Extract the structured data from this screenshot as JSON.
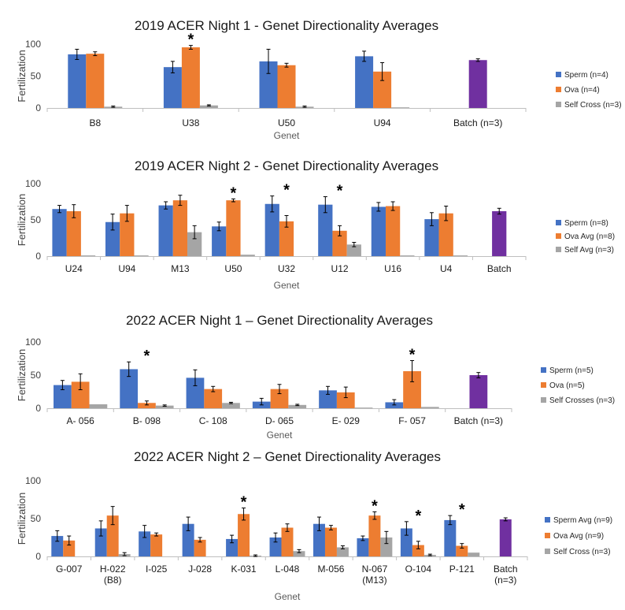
{
  "colors": {
    "sperm": "#4472C4",
    "ova": "#ED7D31",
    "self": "#A5A5A5",
    "batch": "#7030A0"
  },
  "chart_data": [
    {
      "type": "bar",
      "title": "2019 ACER Night 1 - Genet Directionality Averages",
      "xlabel": "Genet",
      "ylabel": "Fertilization",
      "ylim": [
        0,
        100
      ],
      "yticks": [
        "0",
        "50",
        "100"
      ],
      "grid": false,
      "legend_position": "right",
      "categories": [
        [
          "B8"
        ],
        [
          "U38"
        ],
        [
          "U50"
        ],
        [
          "U94"
        ],
        [
          "Batch (n=3)"
        ]
      ],
      "series": [
        {
          "name": "Sperm (n=4)",
          "color": "#4472C4",
          "values": [
            84,
            64,
            73,
            81,
            null
          ],
          "errors": [
            8,
            9,
            19,
            8,
            null
          ]
        },
        {
          "name": "Ova (n=4)",
          "color": "#ED7D31",
          "values": [
            85,
            95,
            67,
            57,
            null
          ],
          "errors": [
            3,
            3,
            3,
            14,
            null
          ]
        },
        {
          "name": "Self Cross (n=3)",
          "color": "#A5A5A5",
          "values": [
            2,
            4,
            2,
            1,
            null
          ],
          "errors": [
            1,
            1,
            1,
            0,
            null
          ]
        }
      ],
      "batch": {
        "value": 75,
        "error": 2,
        "color": "#7030A0"
      },
      "significant": [
        1
      ]
    },
    {
      "type": "bar",
      "title": "2019 ACER Night 2 - Genet Directionality Averages",
      "xlabel": "Genet",
      "ylabel": "Fertilization",
      "ylim": [
        0,
        100
      ],
      "yticks": [
        "0",
        "50",
        "100"
      ],
      "grid": false,
      "legend_position": "right",
      "categories": [
        [
          "U24"
        ],
        [
          "U94"
        ],
        [
          "M13"
        ],
        [
          "U50"
        ],
        [
          "U32"
        ],
        [
          "U12"
        ],
        [
          "U16"
        ],
        [
          "U4"
        ],
        [
          "Batch"
        ]
      ],
      "series": [
        {
          "name": "Sperm (n=8)",
          "color": "#4472C4",
          "values": [
            65,
            47,
            70,
            41,
            72,
            71,
            68,
            51,
            null
          ],
          "errors": [
            5,
            11,
            5,
            6,
            11,
            11,
            6,
            9,
            null
          ]
        },
        {
          "name": "Ova Avg (n=8)",
          "color": "#ED7D31",
          "values": [
            62,
            59,
            77,
            77,
            48,
            35,
            69,
            59,
            null
          ],
          "errors": [
            9,
            11,
            7,
            2,
            8,
            7,
            6,
            10,
            null
          ]
        },
        {
          "name": "Self Avg (n=3)",
          "color": "#A5A5A5",
          "values": [
            1,
            1,
            33,
            2,
            0,
            16,
            1,
            1,
            null
          ],
          "errors": [
            0,
            0,
            9,
            0,
            0,
            3,
            0,
            0,
            null
          ]
        }
      ],
      "batch": {
        "value": 62,
        "error": 4,
        "color": "#7030A0"
      },
      "significant": [
        3,
        4,
        5
      ]
    },
    {
      "type": "bar",
      "title": "2022 ACER Night 1 – Genet Directionality Averages",
      "xlabel": "Genet",
      "ylabel": "Fertilization",
      "ylim": [
        0,
        100
      ],
      "yticks": [
        "0",
        "50",
        "100"
      ],
      "grid": false,
      "legend_position": "right",
      "categories": [
        [
          "A- 056"
        ],
        [
          "B- 098"
        ],
        [
          "C- 108"
        ],
        [
          "D- 065"
        ],
        [
          "E- 029"
        ],
        [
          "F- 057"
        ],
        [
          "Batch (n=3)"
        ]
      ],
      "series": [
        {
          "name": "Sperm (n=5)",
          "color": "#4472C4",
          "values": [
            35,
            59,
            46,
            10,
            27,
            9,
            null
          ],
          "errors": [
            7,
            11,
            12,
            5,
            6,
            4,
            null
          ]
        },
        {
          "name": "Ova (n=5)",
          "color": "#ED7D31",
          "values": [
            40,
            8,
            29,
            29,
            24,
            56,
            null
          ],
          "errors": [
            12,
            3,
            4,
            7,
            8,
            16,
            null
          ]
        },
        {
          "name": "Self Crosses (n=3)",
          "color": "#A5A5A5",
          "values": [
            6,
            4,
            8,
            5,
            1,
            2,
            null
          ],
          "errors": [
            0,
            1,
            1,
            1,
            0,
            0,
            null
          ]
        }
      ],
      "batch": {
        "value": 50,
        "error": 4,
        "color": "#7030A0"
      },
      "significant": [
        1,
        5
      ]
    },
    {
      "type": "bar",
      "title": "2022 ACER Night 2 – Genet Directionality Averages",
      "xlabel": "Genet",
      "ylabel": "Fertilization",
      "ylim": [
        0,
        100
      ],
      "yticks": [
        "0",
        "50",
        "100"
      ],
      "grid": false,
      "legend_position": "right",
      "categories": [
        [
          "G-007"
        ],
        [
          "H-022",
          "(B8)"
        ],
        [
          "I-025"
        ],
        [
          "J-028"
        ],
        [
          "K-031"
        ],
        [
          "L-048"
        ],
        [
          "M-056"
        ],
        [
          "N-067",
          "(M13)"
        ],
        [
          "O-104"
        ],
        [
          "P-121"
        ],
        [
          "Batch",
          "(n=3)"
        ]
      ],
      "series": [
        {
          "name": "Sperm Avg (n=9)",
          "color": "#4472C4",
          "values": [
            27,
            37,
            33,
            43,
            23,
            25,
            43,
            24,
            37,
            48,
            null
          ],
          "errors": [
            7,
            10,
            8,
            9,
            5,
            6,
            9,
            3,
            9,
            6,
            null
          ]
        },
        {
          "name": "Ova Avg (n=9)",
          "color": "#ED7D31",
          "values": [
            21,
            54,
            29,
            22,
            56,
            38,
            38,
            54,
            15,
            14,
            null
          ],
          "errors": [
            6,
            12,
            2,
            3,
            8,
            5,
            3,
            5,
            5,
            3,
            null
          ]
        },
        {
          "name": "Self Cross (n=3)",
          "color": "#A5A5A5",
          "values": [
            0,
            3,
            0,
            0,
            1,
            7,
            12,
            25,
            2,
            5,
            null
          ],
          "errors": [
            0,
            2,
            0,
            0,
            1,
            2,
            2,
            8,
            1,
            0,
            null
          ]
        }
      ],
      "batch": {
        "value": 49,
        "error": 2,
        "color": "#7030A0"
      },
      "significant": [
        4,
        7,
        8,
        9
      ]
    }
  ]
}
